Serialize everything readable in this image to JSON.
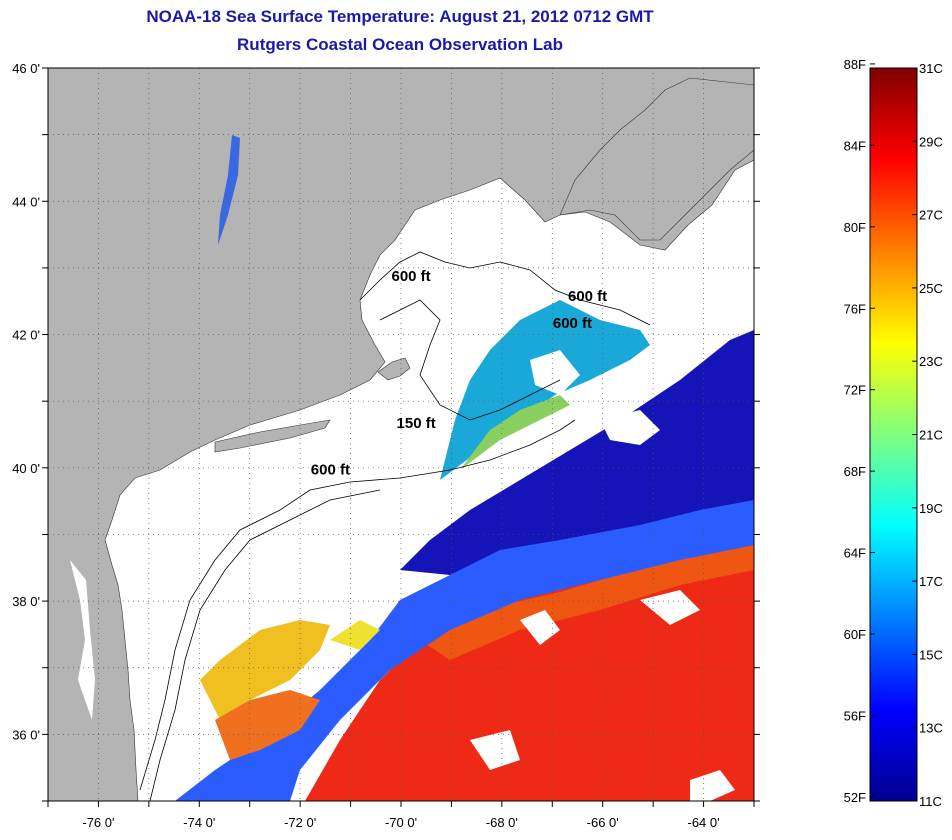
{
  "title": "NOAA-18 Sea Surface Temperature:  August 21, 2012 0712 GMT",
  "subtitle": "Rutgers Coastal Ocean Observation Lab",
  "map": {
    "lon_range": [
      -77,
      -63
    ],
    "lat_range": [
      35,
      46
    ],
    "lat_ticks": [
      {
        "value": 46,
        "label": "46 0'"
      },
      {
        "value": 44,
        "label": "44 0'"
      },
      {
        "value": 42,
        "label": "42 0'"
      },
      {
        "value": 40,
        "label": "40 0'"
      },
      {
        "value": 38,
        "label": "38 0'"
      },
      {
        "value": 36,
        "label": "36 0'"
      }
    ],
    "lon_ticks": [
      {
        "value": -76,
        "label": "-76 0'"
      },
      {
        "value": -74,
        "label": "-74 0'"
      },
      {
        "value": -72,
        "label": "-72 0'"
      },
      {
        "value": -70,
        "label": "-70 0'"
      },
      {
        "value": -68,
        "label": "-68 0'"
      },
      {
        "value": -66,
        "label": "-66 0'"
      },
      {
        "value": -64,
        "label": "-64 0'"
      }
    ],
    "grid": "dotted",
    "land_color": "#b4b4b4",
    "contour_labels": [
      {
        "text": "600 ft",
        "lon": -69.8,
        "lat": 42.8
      },
      {
        "text": "600 ft",
        "lon": -66.3,
        "lat": 42.5
      },
      {
        "text": "600 ft",
        "lon": -66.6,
        "lat": 42.1
      },
      {
        "text": "150 ft",
        "lon": -69.7,
        "lat": 40.6
      },
      {
        "text": "600 ft",
        "lon": -71.4,
        "lat": 39.9
      }
    ]
  },
  "colorbar": {
    "f_labels": [
      "88F",
      "84F",
      "80F",
      "76F",
      "72F",
      "68F",
      "64F",
      "60F",
      "56F",
      "52F"
    ],
    "c_labels": [
      "31C",
      "29C",
      "27C",
      "25C",
      "23C",
      "21C",
      "19C",
      "17C",
      "15C",
      "13C",
      "11C"
    ],
    "range_c": [
      11,
      31
    ],
    "colormap": "jet"
  }
}
